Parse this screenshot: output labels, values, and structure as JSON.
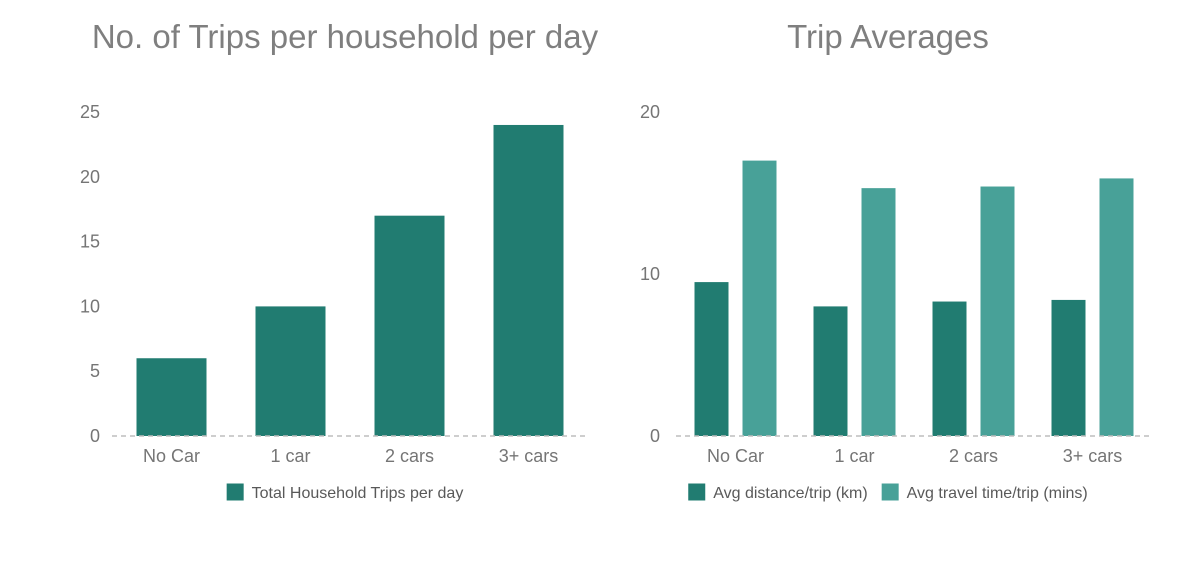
{
  "chart_data": [
    {
      "type": "bar",
      "title": "No. of Trips per household per day",
      "categories": [
        "No Car",
        "1 car",
        "2 cars",
        "3+ cars"
      ],
      "series": [
        {
          "name": "Total Household Trips per day",
          "values": [
            6,
            10,
            17,
            24
          ],
          "color": "#217c71"
        }
      ],
      "yticks": [
        0,
        5,
        10,
        15,
        20,
        25
      ],
      "ylim": [
        0,
        25
      ],
      "grid": false,
      "legend": "bottom"
    },
    {
      "type": "bar",
      "title": "Trip Averages",
      "categories": [
        "No Car",
        "1 car",
        "2 cars",
        "3+ cars"
      ],
      "series": [
        {
          "name": "Avg distance/trip (km)",
          "values": [
            9.5,
            8.0,
            8.3,
            8.4
          ],
          "color": "#217c71"
        },
        {
          "name": "Avg travel time/trip (mins)",
          "values": [
            17.0,
            15.3,
            15.4,
            15.9
          ],
          "color": "#48a198"
        }
      ],
      "yticks": [
        0,
        10,
        20
      ],
      "ylim": [
        0,
        20
      ],
      "grid": false,
      "legend": "bottom"
    }
  ]
}
